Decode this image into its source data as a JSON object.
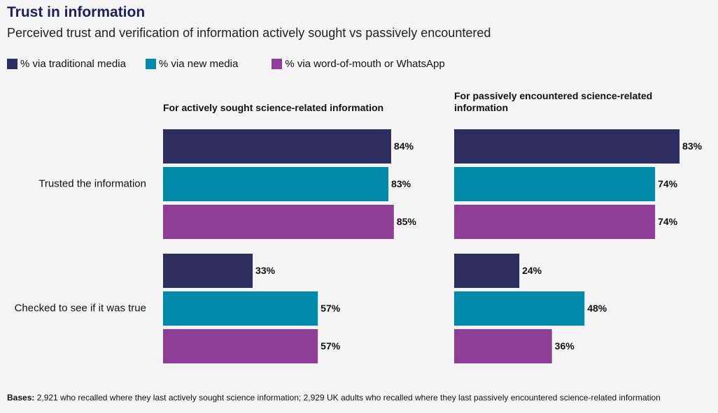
{
  "title": "Trust in information",
  "subtitle": "Perceived trust and verification of information actively sought vs passively encountered",
  "footnote": {
    "label": "Bases:",
    "text": "2,921 who recalled where they last actively sought science information; 2,929 UK adults who recalled where they last passively encountered science-related information"
  },
  "chart_data": [
    {
      "type": "bar",
      "orientation": "horizontal",
      "title": "For actively sought science-related information",
      "categories": [
        "Trusted the information",
        "Checked to see if it was true"
      ],
      "xlim": [
        0,
        100
      ],
      "series": [
        {
          "name": "% via traditional media",
          "color": "#2e2d5f",
          "values": [
            84,
            33
          ],
          "value_labels": [
            "84%",
            "33%"
          ]
        },
        {
          "name": "% via new media",
          "color": "#008bad",
          "values": [
            83,
            57
          ],
          "value_labels": [
            "83%",
            "57%"
          ]
        },
        {
          "name": "% via word-of-mouth or WhatsApp",
          "color": "#8e3e96",
          "values": [
            85,
            57
          ],
          "value_labels": [
            "85%",
            "57%"
          ]
        }
      ]
    },
    {
      "type": "bar",
      "orientation": "horizontal",
      "title": "For passively encountered science-related information",
      "xlim": [
        0,
        100
      ],
      "series": [
        {
          "color": "#2e2d5f",
          "values": [
            83,
            24
          ],
          "value_labels": [
            "83%",
            "24%"
          ]
        },
        {
          "color": "#008bad",
          "values": [
            74,
            48
          ],
          "value_labels": [
            "74%",
            "48%"
          ]
        },
        {
          "color": "#8e3e96",
          "values": [
            74,
            36
          ],
          "value_labels": [
            "74%",
            "36%"
          ]
        }
      ]
    }
  ]
}
